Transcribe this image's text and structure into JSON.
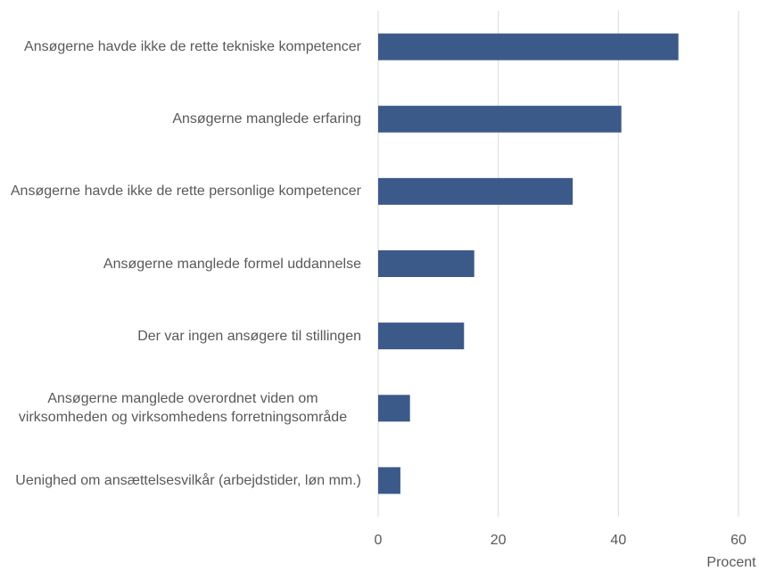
{
  "chart_data": {
    "type": "bar",
    "orientation": "horizontal",
    "categories": [
      "Ansøgerne havde ikke de rette tekniske kompetencer",
      "Ansøgerne manglede erfaring",
      "Ansøgerne havde ikke de rette personlige kompetencer",
      "Ansøgerne manglede formel uddannelse",
      "Der var ingen ansøgere til stillingen",
      "Ansøgerne manglede overordnet viden om virksomheden og virksomhedens forretningsområde",
      "Uenighed om ansættelsesvilkår (arbejdstider, løn mm.)"
    ],
    "values": [
      50,
      40.5,
      32.4,
      16,
      14.3,
      5.3,
      3.7
    ],
    "color": "#3b5a8a",
    "xlim": [
      0,
      60
    ],
    "xticks": [
      0,
      20,
      40,
      60
    ],
    "grid": true,
    "x_label": "Procent"
  }
}
